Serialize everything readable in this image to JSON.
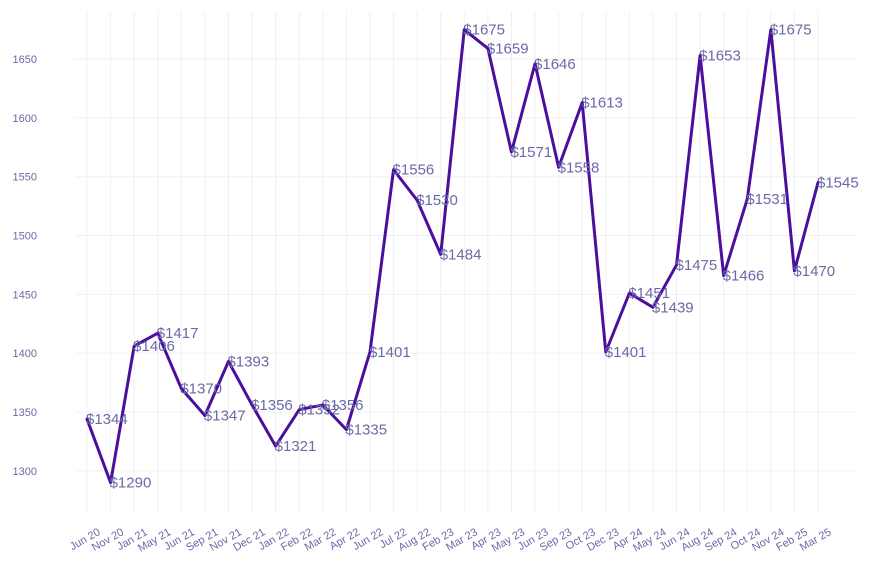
{
  "chart_data": {
    "type": "line",
    "title": "",
    "xlabel": "",
    "ylabel": "",
    "grid": true,
    "color": "#4b0f9e",
    "label_color": "#6a6aa6",
    "ylim": [
      1265,
      1690
    ],
    "yticks": [
      1300,
      1350,
      1400,
      1450,
      1500,
      1550,
      1600,
      1650
    ],
    "categories": [
      "Jun 20",
      "Nov 20",
      "Jan 21",
      "May 21",
      "Jun 21",
      "Sep 21",
      "Nov 21",
      "Dec 21",
      "Jan 22",
      "Feb 22",
      "Mar 22",
      "Apr 22",
      "Jun 22",
      "Jul 22",
      "Aug 22",
      "Feb 23",
      "Mar 23",
      "Apr 23",
      "May 23",
      "Jun 23",
      "Sep 23",
      "Oct 23",
      "Dec 23",
      "Apr 24",
      "May 24",
      "Jun 24",
      "Aug 24",
      "Sep 24",
      "Oct 24",
      "Nov 24",
      "Feb 25",
      "Mar 25"
    ],
    "values": [
      1344,
      1290,
      1406,
      1417,
      1370,
      1347,
      1393,
      1356,
      1321,
      1352,
      1356,
      1335,
      1401,
      1556,
      1530,
      1484,
      1675,
      1659,
      1571,
      1646,
      1558,
      1613,
      1401,
      1451,
      1439,
      1475,
      1653,
      1466,
      1531,
      1675,
      1470,
      1545
    ],
    "data_labels": [
      "$1344",
      "$1290",
      "$1406",
      "$1417",
      "$1370",
      "$1347",
      "$1393",
      "$1356",
      "$1321",
      "$1352",
      "$1356",
      "$1335",
      "$1401",
      "$1556",
      "$1530",
      "$1484",
      "$1675",
      "$1659",
      "$1571",
      "$1646",
      "$1558",
      "$1613",
      "$1401",
      "$1451",
      "$1439",
      "$1475",
      "$1653",
      "$1466",
      "$1531",
      "$1675",
      "$1470",
      "$1545"
    ]
  }
}
